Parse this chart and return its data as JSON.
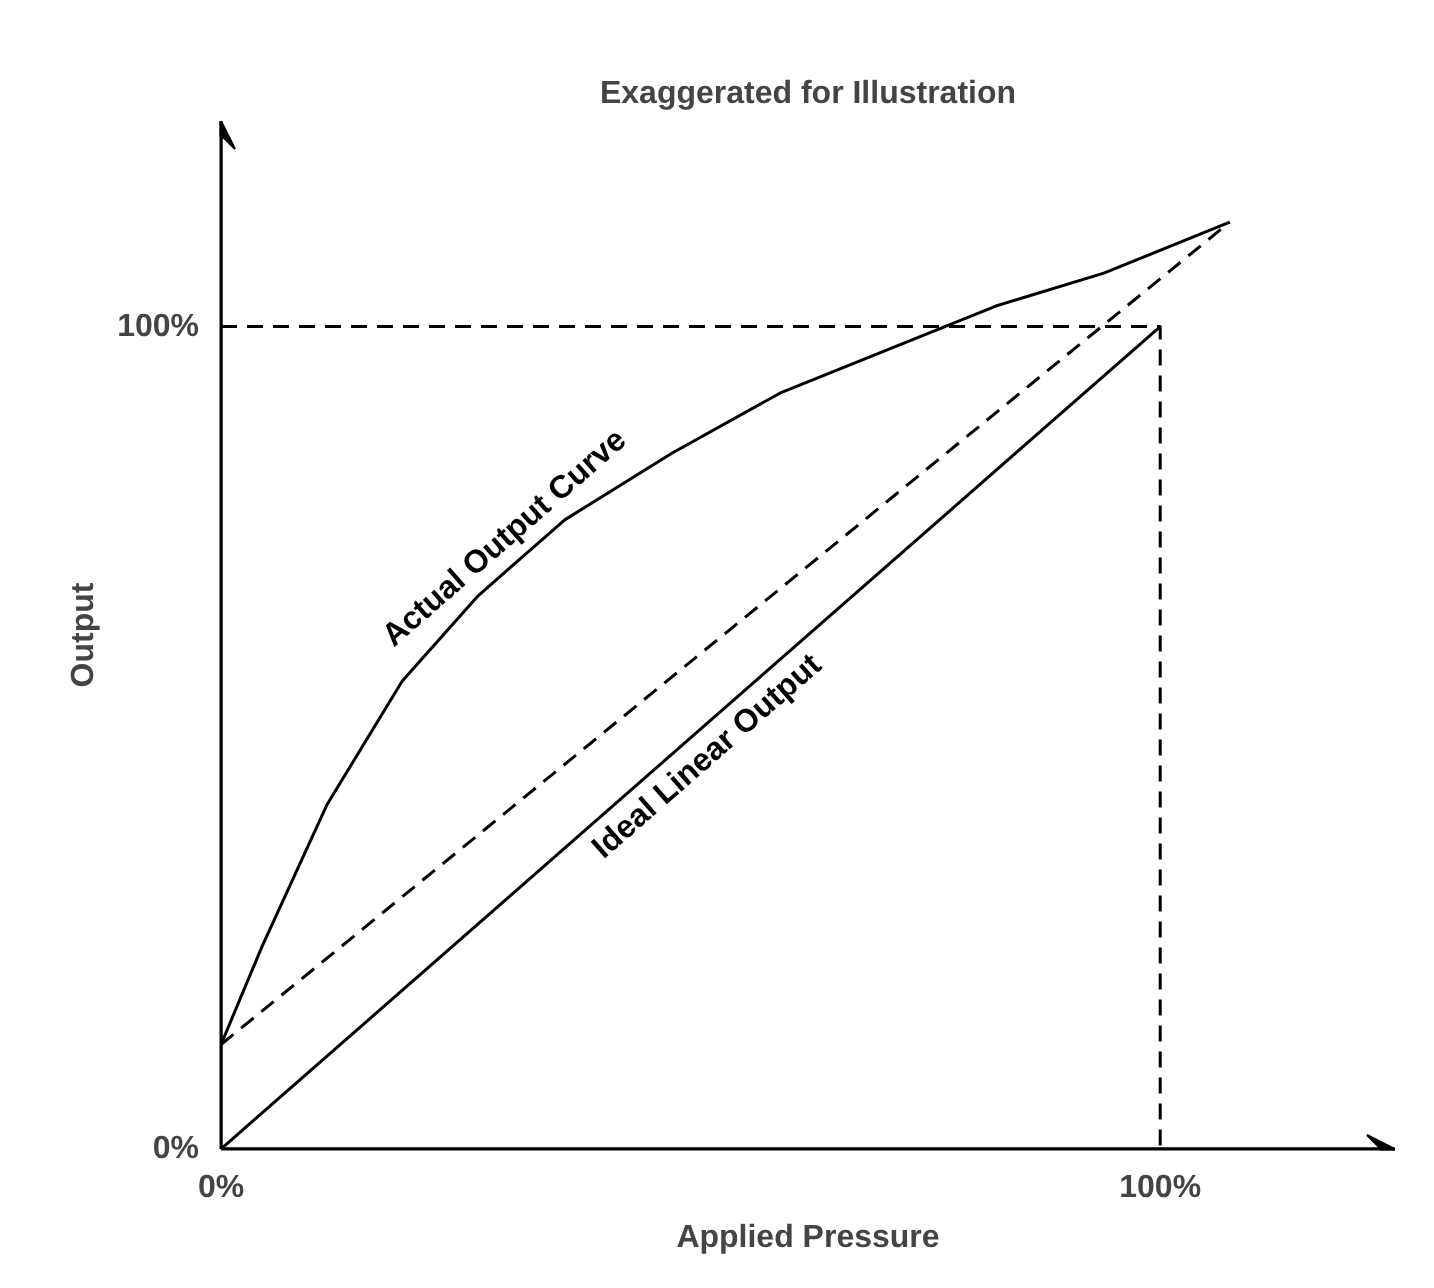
{
  "chart_data": {
    "type": "line",
    "title": "Exaggerated for Illustration",
    "xlabel": "Applied Pressure",
    "ylabel": "Output",
    "xlim": [
      0,
      125
    ],
    "ylim": [
      0,
      125
    ],
    "xticks": [
      {
        "value": 0,
        "label": "0%"
      },
      {
        "value": 100,
        "label": "100%"
      }
    ],
    "yticks": [
      {
        "value": 0,
        "label": "0%"
      },
      {
        "value": 100,
        "label": "100%"
      }
    ],
    "grid": false,
    "legend": false,
    "series": [
      {
        "name": "Ideal Linear Output",
        "color": "#000000",
        "line_style": "solid",
        "x": [
          0,
          100
        ],
        "values": [
          0,
          100
        ]
      },
      {
        "color": "#000000",
        "line_style": "dashed",
        "x": [
          0,
          107.4
        ],
        "values": [
          12.7,
          112.7
        ]
      },
      {
        "color": "#000000",
        "line_style": "dashed",
        "x": [
          0,
          100,
          100
        ],
        "values": [
          100,
          100,
          0
        ]
      },
      {
        "name": "Actual Output Curve",
        "color": "#000000",
        "line_style": "solid",
        "x": [
          0,
          4.4,
          11.3,
          19.3,
          27.4,
          36.6,
          48.0,
          59.5,
          71.0,
          82.5,
          94.0,
          107.4
        ],
        "values": [
          12.7,
          24.7,
          41.9,
          56.9,
          67.3,
          76.5,
          84.6,
          91.9,
          97.2,
          102.5,
          106.5,
          112.7
        ]
      }
    ]
  }
}
